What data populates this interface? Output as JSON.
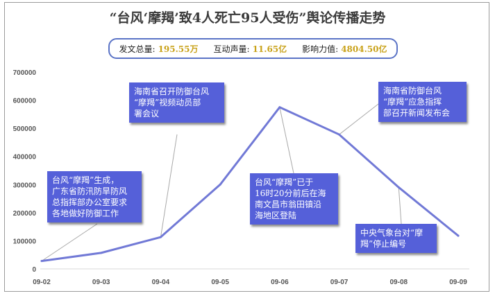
{
  "title": "“台风‘摩羯’致4人死亡95人受伤”舆论传播走势",
  "stats": [
    {
      "label": "发文总量:",
      "value": "195.55万"
    },
    {
      "label": "互动声量:",
      "value": "11.65亿"
    },
    {
      "label": "影响力值:",
      "value": "4804.50亿"
    }
  ],
  "colors": {
    "line": "#7179d6",
    "annotation_bg": "#5560d9",
    "value_text": "#c9a21a",
    "box_border": "#5a73c6"
  },
  "chart_data": {
    "type": "line",
    "title": "“台风‘摩羯’致4人死亡95人受伤”舆论传播走势",
    "xlabel": "",
    "ylabel": "",
    "categories": [
      "09-02",
      "09-03",
      "09-04",
      "09-05",
      "09-06",
      "09-07",
      "09-08",
      "09-09"
    ],
    "series": [
      {
        "values": [
          28000,
          57000,
          113000,
          300000,
          575000,
          478000,
          290000,
          118000
        ]
      }
    ],
    "ylim": [
      0,
      700000
    ],
    "yticks": [
      "0",
      "100000",
      "200000",
      "300000",
      "400000",
      "500000",
      "600000",
      "700000"
    ],
    "grid": false,
    "annotations": [
      {
        "text": "台风“摩羯”生成，\n广东省防汛防旱防风\n总指挥部办公室要求\n各地做好防御工作",
        "category": "09-02"
      },
      {
        "text": "海南省召开防御台风\n“摩羯”视频动员部\n署会议",
        "category": "09-04"
      },
      {
        "text": "台风“摩羯”已于\n16时20分前后在海\n南文昌市翁田镇沿\n海地区登陆",
        "category": "09-06"
      },
      {
        "text": "海南省防御台风\n“摩羯”应急指挥\n部召开新闻发布会",
        "category": "09-07"
      },
      {
        "text": "中央气象台对“摩\n羯”停止编号",
        "category": "09-08"
      }
    ]
  }
}
